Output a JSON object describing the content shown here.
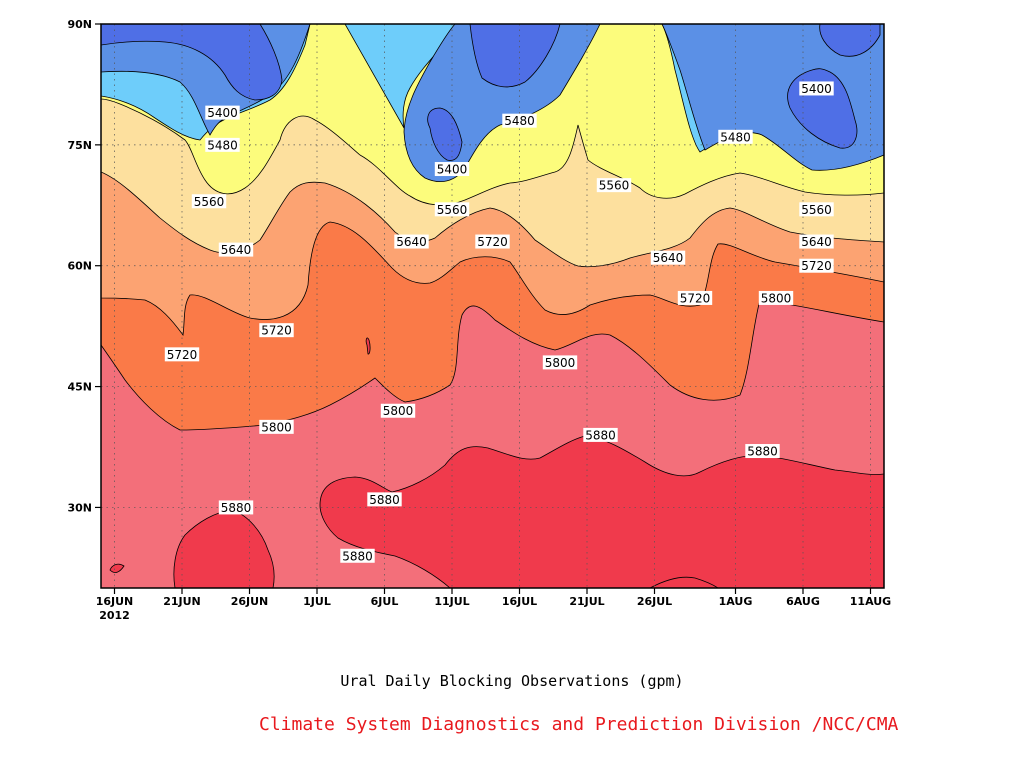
{
  "chart_data": {
    "type": "heatmap",
    "subtype": "filled-contour",
    "title": "Ural Daily Blocking Observations (gpm)",
    "credit": "Climate System Diagnostics and Prediction Division /NCC/CMA",
    "x_ticks": [
      "16JUN",
      "21JUN",
      "26JUN",
      "1JUL",
      "6JUL",
      "11JUL",
      "16JUL",
      "21JUL",
      "26JUL",
      "1AUG",
      "6AUG",
      "11AUG"
    ],
    "x_year_label": "2012",
    "x_range": [
      "2012-06-15",
      "2012-08-12"
    ],
    "y_ticks": [
      "30N",
      "45N",
      "60N",
      "75N",
      "90N"
    ],
    "y_range": [
      20,
      90
    ],
    "grid": "dotted",
    "levels": [
      5400,
      5480,
      5560,
      5640,
      5720,
      5800,
      5880
    ],
    "level_colors": {
      "below_5400": "#4f6fe6",
      "5400_5480": "#5b90e6",
      "5480_5560": "#6ecdfa",
      "5560_5640": "#fcfc7c",
      "5640_5720": "#fde09e",
      "5720_5800": "#fca372",
      "5800_5880": "#fa7a48",
      "5880_5960": "#f36f7a",
      "above_5960": "#f03a4c"
    },
    "contour_labels": [
      {
        "value": "5400",
        "date": "2012-06-24",
        "lat": 79
      },
      {
        "value": "5480",
        "date": "2012-06-24",
        "lat": 75
      },
      {
        "value": "5560",
        "date": "2012-06-23",
        "lat": 68
      },
      {
        "value": "5640",
        "date": "2012-06-25",
        "lat": 62
      },
      {
        "value": "5720",
        "date": "2012-06-28",
        "lat": 52
      },
      {
        "value": "5720",
        "date": "2012-06-21",
        "lat": 49
      },
      {
        "value": "5800",
        "date": "2012-06-28",
        "lat": 40
      },
      {
        "value": "5880",
        "date": "2012-06-25",
        "lat": 30
      },
      {
        "value": "5880",
        "date": "2012-07-04",
        "lat": 24
      },
      {
        "value": "5880",
        "date": "2012-07-06",
        "lat": 31
      },
      {
        "value": "5800",
        "date": "2012-07-07",
        "lat": 42
      },
      {
        "value": "5640",
        "date": "2012-07-08",
        "lat": 63
      },
      {
        "value": "5560",
        "date": "2012-07-11",
        "lat": 67
      },
      {
        "value": "5400",
        "date": "2012-07-11",
        "lat": 72
      },
      {
        "value": "5480",
        "date": "2012-07-16",
        "lat": 78
      },
      {
        "value": "5720",
        "date": "2012-07-14",
        "lat": 63
      },
      {
        "value": "5800",
        "date": "2012-07-19",
        "lat": 48
      },
      {
        "value": "5880",
        "date": "2012-07-22",
        "lat": 39
      },
      {
        "value": "5560",
        "date": "2012-07-23",
        "lat": 70
      },
      {
        "value": "5640",
        "date": "2012-07-27",
        "lat": 61
      },
      {
        "value": "5720",
        "date": "2012-07-29",
        "lat": 56
      },
      {
        "value": "5800",
        "date": "2012-08-04",
        "lat": 56
      },
      {
        "value": "5880",
        "date": "2012-08-03",
        "lat": 37
      },
      {
        "value": "5480",
        "date": "2012-08-01",
        "lat": 76
      },
      {
        "value": "5400",
        "date": "2012-08-07",
        "lat": 82
      },
      {
        "value": "5560",
        "date": "2012-08-07",
        "lat": 67
      },
      {
        "value": "5640",
        "date": "2012-08-07",
        "lat": 63
      },
      {
        "value": "5720",
        "date": "2012-08-07",
        "lat": 60
      }
    ]
  }
}
